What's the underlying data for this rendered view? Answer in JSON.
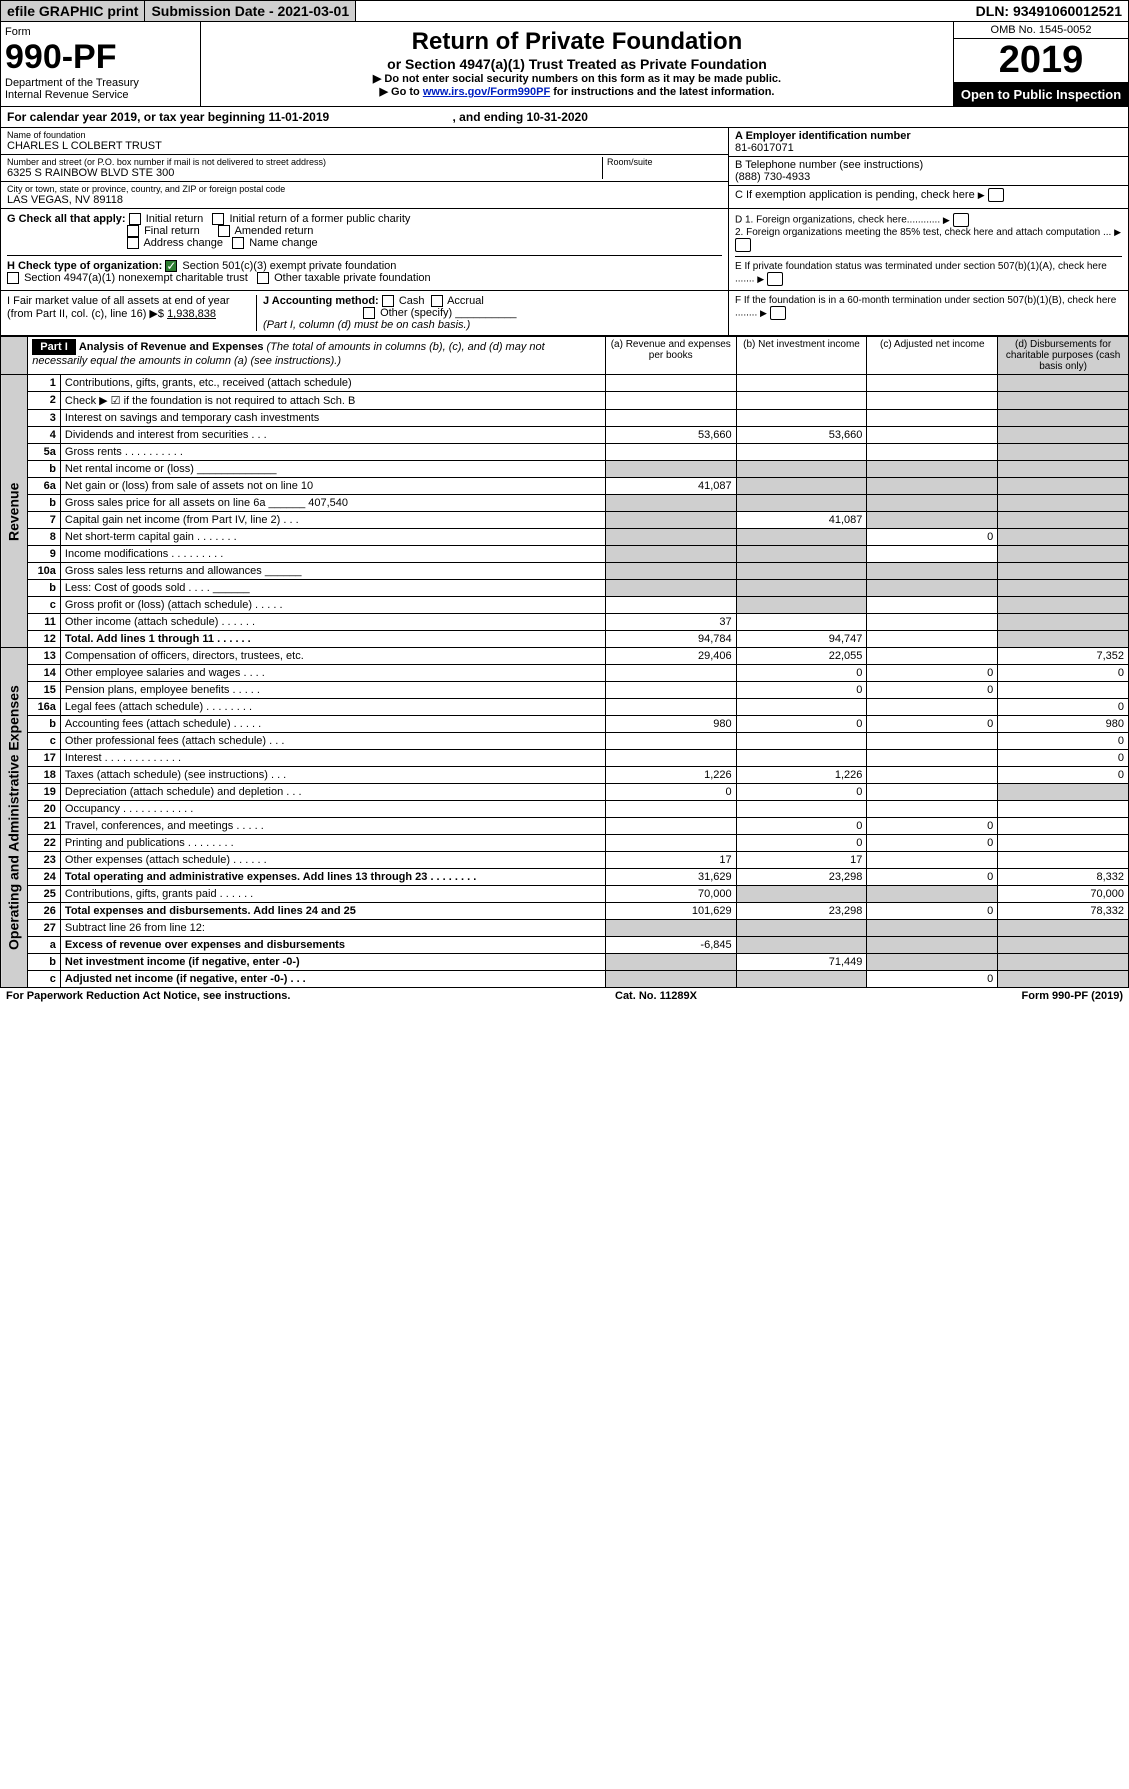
{
  "top": {
    "efile": "efile GRAPHIC print",
    "sub_date_label": "Submission Date - 2021-03-01",
    "dln": "DLN: 93491060012521"
  },
  "header": {
    "form_label": "Form",
    "form_num": "990-PF",
    "dept": "Department of the Treasury",
    "irs": "Internal Revenue Service",
    "title": "Return of Private Foundation",
    "subtitle": "or Section 4947(a)(1) Trust Treated as Private Foundation",
    "warn1": "▶ Do not enter social security numbers on this form as it may be made public.",
    "warn2_pre": "▶ Go to ",
    "warn2_link": "www.irs.gov/Form990PF",
    "warn2_post": " for instructions and the latest information.",
    "omb": "OMB No. 1545-0052",
    "year": "2019",
    "open": "Open to Public Inspection"
  },
  "cal": {
    "text_a": "For calendar year 2019, or tax year beginning 11-01-2019",
    "text_b": ", and ending 10-31-2020"
  },
  "info": {
    "name_label": "Name of foundation",
    "name": "CHARLES L COLBERT TRUST",
    "addr_label": "Number and street (or P.O. box number if mail is not delivered to street address)",
    "addr": "6325 S RAINBOW BLVD STE 300",
    "room_label": "Room/suite",
    "city_label": "City or town, state or province, country, and ZIP or foreign postal code",
    "city": "LAS VEGAS, NV  89118",
    "a_label": "A Employer identification number",
    "a_val": "81-6017071",
    "b_label": "B Telephone number (see instructions)",
    "b_val": "(888) 730-4933",
    "c_label": "C If exemption application is pending, check here"
  },
  "g": {
    "label": "G Check all that apply:",
    "opts": [
      "Initial return",
      "Initial return of a former public charity",
      "Final return",
      "Amended return",
      "Address change",
      "Name change"
    ]
  },
  "h": {
    "label": "H Check type of organization:",
    "o1": "Section 501(c)(3) exempt private foundation",
    "o2": "Section 4947(a)(1) nonexempt charitable trust",
    "o3": "Other taxable private foundation"
  },
  "i": {
    "label": "I Fair market value of all assets at end of year (from Part II, col. (c), line 16) ▶$",
    "val": "1,938,838"
  },
  "j": {
    "label": "J Accounting method:",
    "o1": "Cash",
    "o2": "Accrual",
    "o3": "Other (specify)",
    "note": "(Part I, column (d) must be on cash basis.)"
  },
  "d": {
    "l1": "D 1. Foreign organizations, check here............",
    "l2": "2. Foreign organizations meeting the 85% test, check here and attach computation ...",
    "e": "E  If private foundation status was terminated under section 507(b)(1)(A), check here .......",
    "f": "F  If the foundation is in a 60-month termination under section 507(b)(1)(B), check here ........"
  },
  "part1": {
    "label": "Part I",
    "title": "Analysis of Revenue and Expenses",
    "note": "(The total of amounts in columns (b), (c), and (d) may not necessarily equal the amounts in column (a) (see instructions).)",
    "col_a": "(a) Revenue and expenses per books",
    "col_b": "(b) Net investment income",
    "col_c": "(c) Adjusted net income",
    "col_d": "(d) Disbursements for charitable purposes (cash basis only)",
    "rev_label": "Revenue",
    "exp_label": "Operating and Administrative Expenses"
  },
  "rows": [
    {
      "n": "1",
      "d": "Contributions, gifts, grants, etc., received (attach schedule)",
      "a": "",
      "b": "",
      "c": "",
      "dd": "",
      "sc": "",
      "sd": "1"
    },
    {
      "n": "2",
      "d": "Check ▶ ☑ if the foundation is not required to attach Sch. B",
      "a": "",
      "b": "",
      "c": "",
      "dd": "",
      "sc": "",
      "sd": "1"
    },
    {
      "n": "3",
      "d": "Interest on savings and temporary cash investments",
      "a": "",
      "b": "",
      "c": "",
      "dd": "",
      "sd": "1"
    },
    {
      "n": "4",
      "d": "Dividends and interest from securities   .   .   .",
      "a": "53,660",
      "b": "53,660",
      "c": "",
      "dd": "",
      "sd": "1"
    },
    {
      "n": "5a",
      "d": "Gross rents   .   .   .   .   .   .   .   .   .   .",
      "a": "",
      "b": "",
      "c": "",
      "dd": "",
      "sd": "1"
    },
    {
      "n": "b",
      "d": "Net rental income or (loss)  _____________",
      "a": "",
      "b": "",
      "c": "",
      "dd": "",
      "sa": "1",
      "sb": "1",
      "sc": "1",
      "sd": "1"
    },
    {
      "n": "6a",
      "d": "Net gain or (loss) from sale of assets not on line 10",
      "a": "41,087",
      "b": "",
      "c": "",
      "dd": "",
      "sb": "1",
      "sc": "1",
      "sd": "1"
    },
    {
      "n": "b",
      "d": "Gross sales price for all assets on line 6a ______ 407,540",
      "a": "",
      "b": "",
      "c": "",
      "dd": "",
      "sa": "1",
      "sb": "1",
      "sc": "1",
      "sd": "1"
    },
    {
      "n": "7",
      "d": "Capital gain net income (from Part IV, line 2)   .   .   .",
      "a": "",
      "b": "41,087",
      "c": "",
      "dd": "",
      "sa": "1",
      "sc": "1",
      "sd": "1"
    },
    {
      "n": "8",
      "d": "Net short-term capital gain   .   .   .   .   .   .   .",
      "a": "",
      "b": "",
      "c": "0",
      "dd": "",
      "sa": "1",
      "sb": "1",
      "sd": "1"
    },
    {
      "n": "9",
      "d": "Income modifications   .   .   .   .   .   .   .   .   .",
      "a": "",
      "b": "",
      "c": "",
      "dd": "",
      "sa": "1",
      "sb": "1",
      "sd": "1"
    },
    {
      "n": "10a",
      "d": "Gross sales less returns and allowances  ______",
      "a": "",
      "b": "",
      "c": "",
      "dd": "",
      "sa": "1",
      "sb": "1",
      "sc": "1",
      "sd": "1"
    },
    {
      "n": "b",
      "d": "Less: Cost of goods sold    .   .   .   .  ______",
      "a": "",
      "b": "",
      "c": "",
      "dd": "",
      "sa": "1",
      "sb": "1",
      "sc": "1",
      "sd": "1"
    },
    {
      "n": "c",
      "d": "Gross profit or (loss) (attach schedule)   .   .   .   .   .",
      "a": "",
      "b": "",
      "c": "",
      "dd": "",
      "sb": "1",
      "sd": "1"
    },
    {
      "n": "11",
      "d": "Other income (attach schedule)   .   .   .   .   .   .",
      "a": "37",
      "b": "",
      "c": "",
      "dd": "",
      "sd": "1"
    },
    {
      "n": "12",
      "d": "Total. Add lines 1 through 11   .   .   .   .   .   .",
      "a": "94,784",
      "b": "94,747",
      "c": "",
      "dd": "",
      "sd": "1",
      "bold": "1"
    },
    {
      "n": "13",
      "d": "Compensation of officers, directors, trustees, etc.",
      "a": "29,406",
      "b": "22,055",
      "c": "",
      "dd": "7,352"
    },
    {
      "n": "14",
      "d": "Other employee salaries and wages   .   .   .   .",
      "a": "",
      "b": "0",
      "c": "0",
      "dd": "0"
    },
    {
      "n": "15",
      "d": "Pension plans, employee benefits   .   .   .   .   .",
      "a": "",
      "b": "0",
      "c": "0",
      "dd": ""
    },
    {
      "n": "16a",
      "d": "Legal fees (attach schedule)   .   .   .   .   .   .   .   .",
      "a": "",
      "b": "",
      "c": "",
      "dd": "0"
    },
    {
      "n": "b",
      "d": "Accounting fees (attach schedule)   .   .   .   .   .",
      "a": "980",
      "b": "0",
      "c": "0",
      "dd": "980"
    },
    {
      "n": "c",
      "d": "Other professional fees (attach schedule)   .   .   .",
      "a": "",
      "b": "",
      "c": "",
      "dd": "0"
    },
    {
      "n": "17",
      "d": "Interest   .   .   .   .   .   .   .   .   .   .   .   .   .",
      "a": "",
      "b": "",
      "c": "",
      "dd": "0"
    },
    {
      "n": "18",
      "d": "Taxes (attach schedule) (see instructions)   .   .   .",
      "a": "1,226",
      "b": "1,226",
      "c": "",
      "dd": "0"
    },
    {
      "n": "19",
      "d": "Depreciation (attach schedule) and depletion   .   .   .",
      "a": "0",
      "b": "0",
      "c": "",
      "dd": "",
      "sd": "1"
    },
    {
      "n": "20",
      "d": "Occupancy   .   .   .   .   .   .   .   .   .   .   .   .",
      "a": "",
      "b": "",
      "c": "",
      "dd": ""
    },
    {
      "n": "21",
      "d": "Travel, conferences, and meetings   .   .   .   .   .",
      "a": "",
      "b": "0",
      "c": "0",
      "dd": ""
    },
    {
      "n": "22",
      "d": "Printing and publications   .   .   .   .   .   .   .   .",
      "a": "",
      "b": "0",
      "c": "0",
      "dd": ""
    },
    {
      "n": "23",
      "d": "Other expenses (attach schedule)   .   .   .   .   .   .",
      "a": "17",
      "b": "17",
      "c": "",
      "dd": ""
    },
    {
      "n": "24",
      "d": "Total operating and administrative expenses. Add lines 13 through 23   .   .   .   .   .   .   .   .",
      "a": "31,629",
      "b": "23,298",
      "c": "0",
      "dd": "8,332",
      "bold": "1"
    },
    {
      "n": "25",
      "d": "Contributions, gifts, grants paid   .   .   .   .   .   .",
      "a": "70,000",
      "b": "",
      "c": "",
      "dd": "70,000",
      "sb": "1",
      "sc": "1"
    },
    {
      "n": "26",
      "d": "Total expenses and disbursements. Add lines 24 and 25",
      "a": "101,629",
      "b": "23,298",
      "c": "0",
      "dd": "78,332",
      "bold": "1"
    },
    {
      "n": "27",
      "d": "Subtract line 26 from line 12:",
      "a": "",
      "b": "",
      "c": "",
      "dd": "",
      "sa": "1",
      "sb": "1",
      "sc": "1",
      "sd": "1"
    },
    {
      "n": "a",
      "d": "Excess of revenue over expenses and disbursements",
      "a": "-6,845",
      "b": "",
      "c": "",
      "dd": "",
      "bold": "1",
      "sb": "1",
      "sc": "1",
      "sd": "1"
    },
    {
      "n": "b",
      "d": "Net investment income (if negative, enter -0-)",
      "a": "",
      "b": "71,449",
      "c": "",
      "dd": "",
      "bold": "1",
      "sa": "1",
      "sc": "1",
      "sd": "1"
    },
    {
      "n": "c",
      "d": "Adjusted net income (if negative, enter -0-)   .   .   .",
      "a": "",
      "b": "",
      "c": "0",
      "dd": "",
      "bold": "1",
      "sa": "1",
      "sb": "1",
      "sd": "1"
    }
  ],
  "footer": {
    "left": "For Paperwork Reduction Act Notice, see instructions.",
    "mid": "Cat. No. 11289X",
    "right": "Form 990-PF (2019)"
  }
}
